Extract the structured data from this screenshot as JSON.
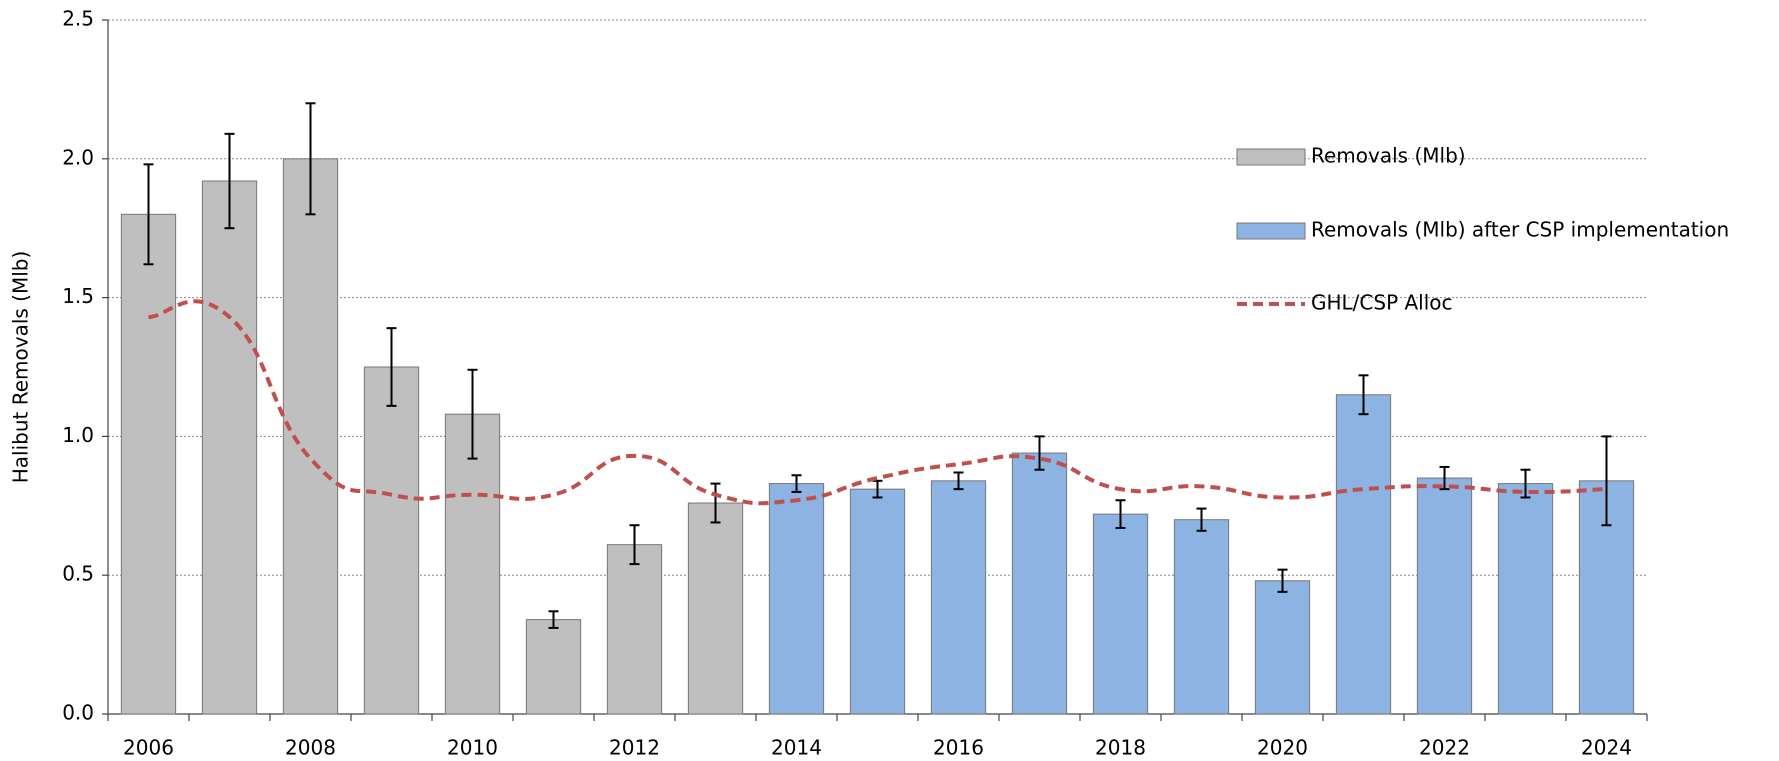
{
  "chart_data": {
    "type": "bar",
    "y_label": "Halibut Removals (Mlb)",
    "categories": [
      "2006",
      null,
      "2008",
      null,
      "2010",
      null,
      "2012",
      null,
      "2014",
      null,
      "2016",
      null,
      "2018",
      null,
      "2020",
      null,
      "2022",
      null,
      "2024"
    ],
    "series": [
      {
        "name": "Removals (Mlb)",
        "type": "bar",
        "color": "#bfbfbf",
        "values": [
          1.8,
          1.92,
          2.0,
          1.25,
          1.08,
          0.34,
          0.61,
          0.76,
          null,
          null,
          null,
          null,
          null,
          null,
          null,
          null,
          null,
          null,
          null
        ],
        "errors": [
          0.18,
          0.17,
          0.2,
          0.14,
          0.16,
          0.03,
          0.07,
          0.07,
          null,
          null,
          null,
          null,
          null,
          null,
          null,
          null,
          null,
          null,
          null
        ]
      },
      {
        "name": "Removals (Mlb) after CSP implementation",
        "type": "bar",
        "color": "#8db3e2",
        "values": [
          null,
          null,
          null,
          null,
          null,
          null,
          null,
          null,
          0.83,
          0.81,
          0.84,
          0.94,
          0.72,
          0.7,
          0.48,
          1.15,
          0.85,
          0.83,
          0.84
        ],
        "errors": [
          null,
          null,
          null,
          null,
          null,
          null,
          null,
          null,
          0.03,
          0.03,
          0.03,
          0.06,
          0.05,
          0.04,
          0.04,
          0.07,
          0.04,
          0.05,
          0.16
        ]
      },
      {
        "name": "GHL/CSP Alloc",
        "type": "line",
        "color": "#c0504d",
        "values": [
          1.43,
          1.43,
          0.92,
          0.79,
          0.79,
          0.79,
          0.93,
          0.79,
          0.77,
          0.85,
          0.9,
          0.92,
          0.81,
          0.82,
          0.78,
          0.81,
          0.82,
          0.8,
          0.81
        ]
      }
    ],
    "ylim": [
      0,
      2.5
    ],
    "yticks": [
      {
        "value": 0,
        "label": "0.0"
      },
      0.5,
      {
        "value": 1,
        "label": "1.0"
      },
      1.5,
      {
        "value": 2,
        "label": "2.0"
      },
      2.5
    ],
    "grid": true,
    "legend": "right"
  }
}
